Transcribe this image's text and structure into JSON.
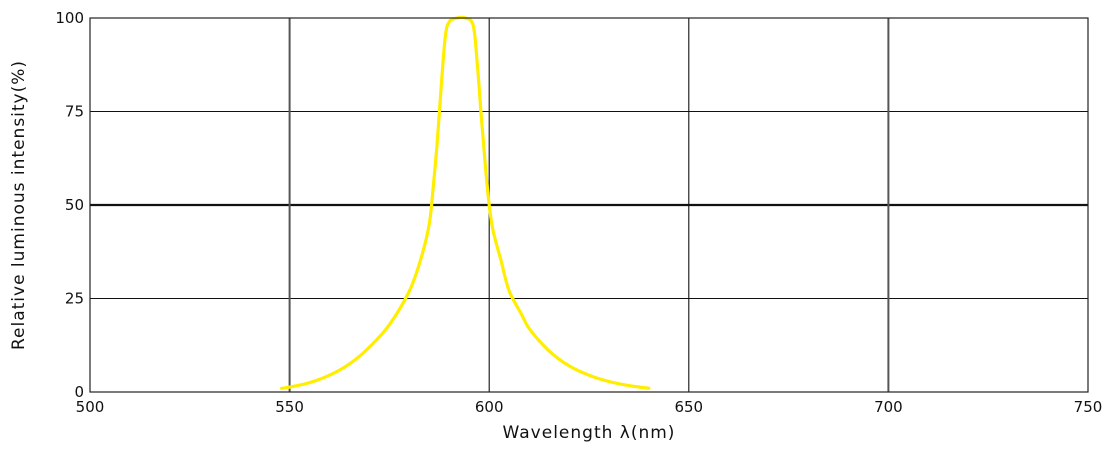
{
  "chart_data": {
    "type": "line",
    "title": "",
    "xlabel": "Wavelength λ(nm)",
    "ylabel": "Relative luminous intensity(%)",
    "xlim": [
      500,
      750
    ],
    "ylim": [
      0,
      100
    ],
    "x_ticks": [
      500,
      550,
      600,
      650,
      700,
      750
    ],
    "y_ticks": [
      0,
      25,
      50,
      75,
      100
    ],
    "grid": true,
    "legend": "none",
    "series": [
      {
        "color": "#ffee00",
        "points": [
          [
            548,
            1
          ],
          [
            550,
            1.3
          ],
          [
            555,
            2.5
          ],
          [
            560,
            4.5
          ],
          [
            565,
            7.5
          ],
          [
            570,
            12
          ],
          [
            575,
            18
          ],
          [
            580,
            27
          ],
          [
            583,
            36
          ],
          [
            585,
            45
          ],
          [
            586,
            55
          ],
          [
            587,
            67
          ],
          [
            588,
            82
          ],
          [
            589,
            95
          ],
          [
            590,
            99
          ],
          [
            592,
            100
          ],
          [
            594,
            100
          ],
          [
            596,
            98
          ],
          [
            597,
            88
          ],
          [
            598,
            74
          ],
          [
            599,
            61
          ],
          [
            600,
            50
          ],
          [
            601,
            43
          ],
          [
            603,
            35
          ],
          [
            605,
            27
          ],
          [
            608,
            21
          ],
          [
            610,
            17
          ],
          [
            615,
            11
          ],
          [
            620,
            7
          ],
          [
            625,
            4.5
          ],
          [
            630,
            2.8
          ],
          [
            635,
            1.7
          ],
          [
            640,
            1
          ]
        ]
      }
    ]
  }
}
